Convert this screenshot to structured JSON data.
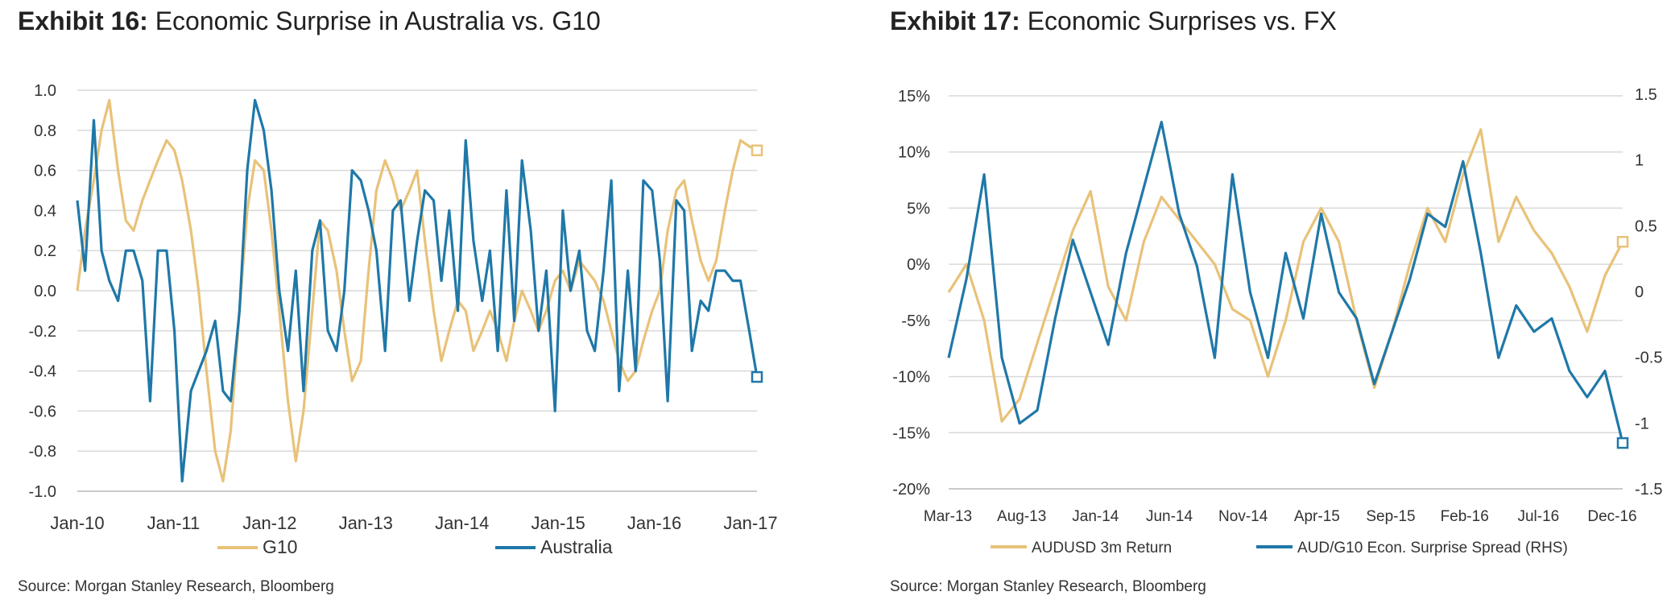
{
  "colors": {
    "g10": "#E8C279",
    "australia": "#1F78A8",
    "grid": "#D9D9D9",
    "axis": "#BFBFBF"
  },
  "exhibit16": {
    "title_lead": "Exhibit 16:",
    "title_text": "Economic Surprise in Australia vs. G10",
    "source": "Source: Morgan Stanley Research, Bloomberg"
  },
  "exhibit17": {
    "title_lead": "Exhibit 17:",
    "title_text": "Economic Surprises vs. FX",
    "source": "Source: Morgan Stanley Research, Bloomberg"
  },
  "chart_data": [
    {
      "type": "line",
      "title": "Economic Surprise in Australia vs. G10",
      "xlabel": "",
      "ylabel": "",
      "ylim": [
        -1.0,
        1.0
      ],
      "y_ticks": [
        "1.0",
        "0.8",
        "0.6",
        "0.4",
        "0.2",
        "0.0",
        "-0.2",
        "-0.4",
        "-0.6",
        "-0.8",
        "-1.0"
      ],
      "x_tick_labels": [
        "Jan-10",
        "Jan-11",
        "Jan-12",
        "Jan-13",
        "Jan-14",
        "Jan-15",
        "Jan-16",
        "Jan-17"
      ],
      "x_range": [
        0,
        7
      ],
      "gridlines": true,
      "legend": [
        "G10",
        "Australia"
      ],
      "legend_position": "bottom",
      "series": [
        {
          "name": "G10",
          "color": "#E8C279",
          "end_marker": "square",
          "x": [
            0,
            0.08,
            0.17,
            0.25,
            0.33,
            0.42,
            0.5,
            0.58,
            0.67,
            0.75,
            0.83,
            0.92,
            1.0,
            1.08,
            1.17,
            1.25,
            1.33,
            1.42,
            1.5,
            1.58,
            1.67,
            1.75,
            1.83,
            1.92,
            2.0,
            2.08,
            2.17,
            2.25,
            2.33,
            2.42,
            2.5,
            2.58,
            2.67,
            2.75,
            2.83,
            2.92,
            3.0,
            3.08,
            3.17,
            3.25,
            3.33,
            3.42,
            3.5,
            3.58,
            3.67,
            3.75,
            3.83,
            3.92,
            4.0,
            4.08,
            4.17,
            4.25,
            4.33,
            4.42,
            4.5,
            4.58,
            4.67,
            4.75,
            4.83,
            4.92,
            5.0,
            5.08,
            5.17,
            5.25,
            5.33,
            5.42,
            5.5,
            5.58,
            5.67,
            5.75,
            5.83,
            5.92,
            6.0,
            6.08,
            6.17,
            6.25,
            6.33,
            6.42,
            6.5,
            6.58,
            6.67,
            6.75,
            6.83,
            6.92,
            7.0
          ],
          "values": [
            0.0,
            0.3,
            0.55,
            0.8,
            0.95,
            0.6,
            0.35,
            0.3,
            0.45,
            0.55,
            0.65,
            0.75,
            0.7,
            0.55,
            0.3,
            0.0,
            -0.4,
            -0.8,
            -0.95,
            -0.7,
            -0.1,
            0.4,
            0.65,
            0.6,
            0.3,
            -0.1,
            -0.55,
            -0.85,
            -0.6,
            -0.1,
            0.35,
            0.3,
            0.1,
            -0.2,
            -0.45,
            -0.35,
            0.1,
            0.5,
            0.65,
            0.55,
            0.4,
            0.5,
            0.6,
            0.25,
            -0.1,
            -0.35,
            -0.2,
            -0.05,
            -0.1,
            -0.3,
            -0.2,
            -0.1,
            -0.2,
            -0.35,
            -0.15,
            0.0,
            -0.1,
            -0.2,
            -0.1,
            0.05,
            0.1,
            0.0,
            0.15,
            0.1,
            0.05,
            -0.05,
            -0.2,
            -0.35,
            -0.45,
            -0.4,
            -0.25,
            -0.1,
            0.0,
            0.3,
            0.5,
            0.55,
            0.35,
            0.15,
            0.05,
            0.15,
            0.4,
            0.6,
            0.75,
            0.72,
            0.7
          ]
        },
        {
          "name": "Australia",
          "color": "#1F78A8",
          "end_marker": "square",
          "x": [
            0,
            0.08,
            0.17,
            0.25,
            0.33,
            0.42,
            0.5,
            0.58,
            0.67,
            0.75,
            0.83,
            0.92,
            1.0,
            1.08,
            1.17,
            1.25,
            1.33,
            1.42,
            1.5,
            1.58,
            1.67,
            1.75,
            1.83,
            1.92,
            2.0,
            2.08,
            2.17,
            2.25,
            2.33,
            2.42,
            2.5,
            2.58,
            2.67,
            2.75,
            2.83,
            2.92,
            3.0,
            3.08,
            3.17,
            3.25,
            3.33,
            3.42,
            3.5,
            3.58,
            3.67,
            3.75,
            3.83,
            3.92,
            4.0,
            4.08,
            4.17,
            4.25,
            4.33,
            4.42,
            4.5,
            4.58,
            4.67,
            4.75,
            4.83,
            4.92,
            5.0,
            5.08,
            5.17,
            5.25,
            5.33,
            5.42,
            5.5,
            5.58,
            5.67,
            5.75,
            5.83,
            5.92,
            6.0,
            6.08,
            6.17,
            6.25,
            6.33,
            6.42,
            6.5,
            6.58,
            6.67,
            6.75,
            6.83,
            6.92,
            7.0
          ],
          "values": [
            0.45,
            0.1,
            0.85,
            0.2,
            0.05,
            -0.05,
            0.2,
            0.2,
            0.05,
            -0.55,
            0.2,
            0.2,
            -0.2,
            -0.95,
            -0.5,
            -0.4,
            -0.3,
            -0.15,
            -0.5,
            -0.55,
            -0.1,
            0.6,
            0.95,
            0.8,
            0.5,
            0.0,
            -0.3,
            0.1,
            -0.5,
            0.2,
            0.35,
            -0.2,
            -0.3,
            0.0,
            0.6,
            0.55,
            0.4,
            0.2,
            -0.3,
            0.4,
            0.45,
            -0.05,
            0.25,
            0.5,
            0.45,
            0.05,
            0.4,
            -0.1,
            0.75,
            0.25,
            -0.05,
            0.2,
            -0.3,
            0.5,
            -0.15,
            0.65,
            0.3,
            -0.2,
            0.1,
            -0.6,
            0.4,
            0.0,
            0.2,
            -0.2,
            -0.3,
            0.1,
            0.55,
            -0.5,
            0.1,
            -0.4,
            0.55,
            0.5,
            0.15,
            -0.55,
            0.45,
            0.4,
            -0.3,
            -0.05,
            -0.1,
            0.1,
            0.1,
            0.05,
            0.05,
            -0.2,
            -0.43
          ]
        }
      ]
    },
    {
      "type": "line",
      "title": "Economic Surprises vs. FX",
      "xlabel": "",
      "ylabel": "",
      "ylim": [
        -0.2,
        0.15
      ],
      "y_ticks": [
        "15%",
        "10%",
        "5%",
        "0%",
        "-5%",
        "-10%",
        "-15%",
        "-20%"
      ],
      "y2lim": [
        -1.5,
        1.5
      ],
      "y2_ticks": [
        "1.5",
        "1",
        "0.5",
        "0",
        "-0.5",
        "-1",
        "-1.5"
      ],
      "x_tick_labels": [
        "Mar-13",
        "Aug-13",
        "Jan-14",
        "Jun-14",
        "Nov-14",
        "Apr-15",
        "Sep-15",
        "Feb-16",
        "Jul-16",
        "Dec-16"
      ],
      "x_range": [
        0,
        9.5
      ],
      "gridlines": true,
      "legend": [
        "AUDUSD 3m Return",
        "AUD/G10 Econ. Surprise Spread (RHS)"
      ],
      "legend_position": "bottom",
      "series": [
        {
          "name": "AUDUSD 3m Return",
          "axis": "left",
          "color": "#E8C279",
          "end_marker": "square",
          "x": [
            0,
            0.25,
            0.5,
            0.75,
            1.0,
            1.25,
            1.5,
            1.75,
            2.0,
            2.25,
            2.5,
            2.75,
            3.0,
            3.25,
            3.5,
            3.75,
            4.0,
            4.25,
            4.5,
            4.75,
            5.0,
            5.25,
            5.5,
            5.75,
            6.0,
            6.25,
            6.5,
            6.75,
            7.0,
            7.25,
            7.5,
            7.75,
            8.0,
            8.25,
            8.5,
            8.75,
            9.0,
            9.25,
            9.5
          ],
          "values": [
            -0.025,
            0.0,
            -0.05,
            -0.14,
            -0.12,
            -0.07,
            -0.02,
            0.03,
            0.065,
            -0.02,
            -0.05,
            0.02,
            0.06,
            0.04,
            0.02,
            0.0,
            -0.04,
            -0.05,
            -0.1,
            -0.05,
            0.02,
            0.05,
            0.02,
            -0.05,
            -0.11,
            -0.06,
            0.0,
            0.05,
            0.02,
            0.08,
            0.12,
            0.02,
            0.06,
            0.03,
            0.01,
            -0.02,
            -0.06,
            -0.01,
            0.02
          ]
        },
        {
          "name": "AUD/G10 Econ. Surprise Spread (RHS)",
          "axis": "right",
          "color": "#1F78A8",
          "end_marker": "square",
          "x": [
            0,
            0.25,
            0.5,
            0.75,
            1.0,
            1.25,
            1.5,
            1.75,
            2.0,
            2.25,
            2.5,
            2.75,
            3.0,
            3.25,
            3.5,
            3.75,
            4.0,
            4.25,
            4.5,
            4.75,
            5.0,
            5.25,
            5.5,
            5.75,
            6.0,
            6.25,
            6.5,
            6.75,
            7.0,
            7.25,
            7.5,
            7.75,
            8.0,
            8.25,
            8.5,
            8.75,
            9.0,
            9.25,
            9.5
          ],
          "values": [
            -0.5,
            0.1,
            0.9,
            -0.5,
            -1.0,
            -0.9,
            -0.2,
            0.4,
            0.0,
            -0.4,
            0.3,
            0.8,
            1.3,
            0.6,
            0.2,
            -0.5,
            0.9,
            0.0,
            -0.5,
            0.3,
            -0.2,
            0.6,
            0.0,
            -0.2,
            -0.7,
            -0.3,
            0.1,
            0.6,
            0.5,
            1.0,
            0.3,
            -0.5,
            -0.1,
            -0.3,
            -0.2,
            -0.6,
            -0.8,
            -0.6,
            -1.15
          ]
        }
      ]
    }
  ]
}
